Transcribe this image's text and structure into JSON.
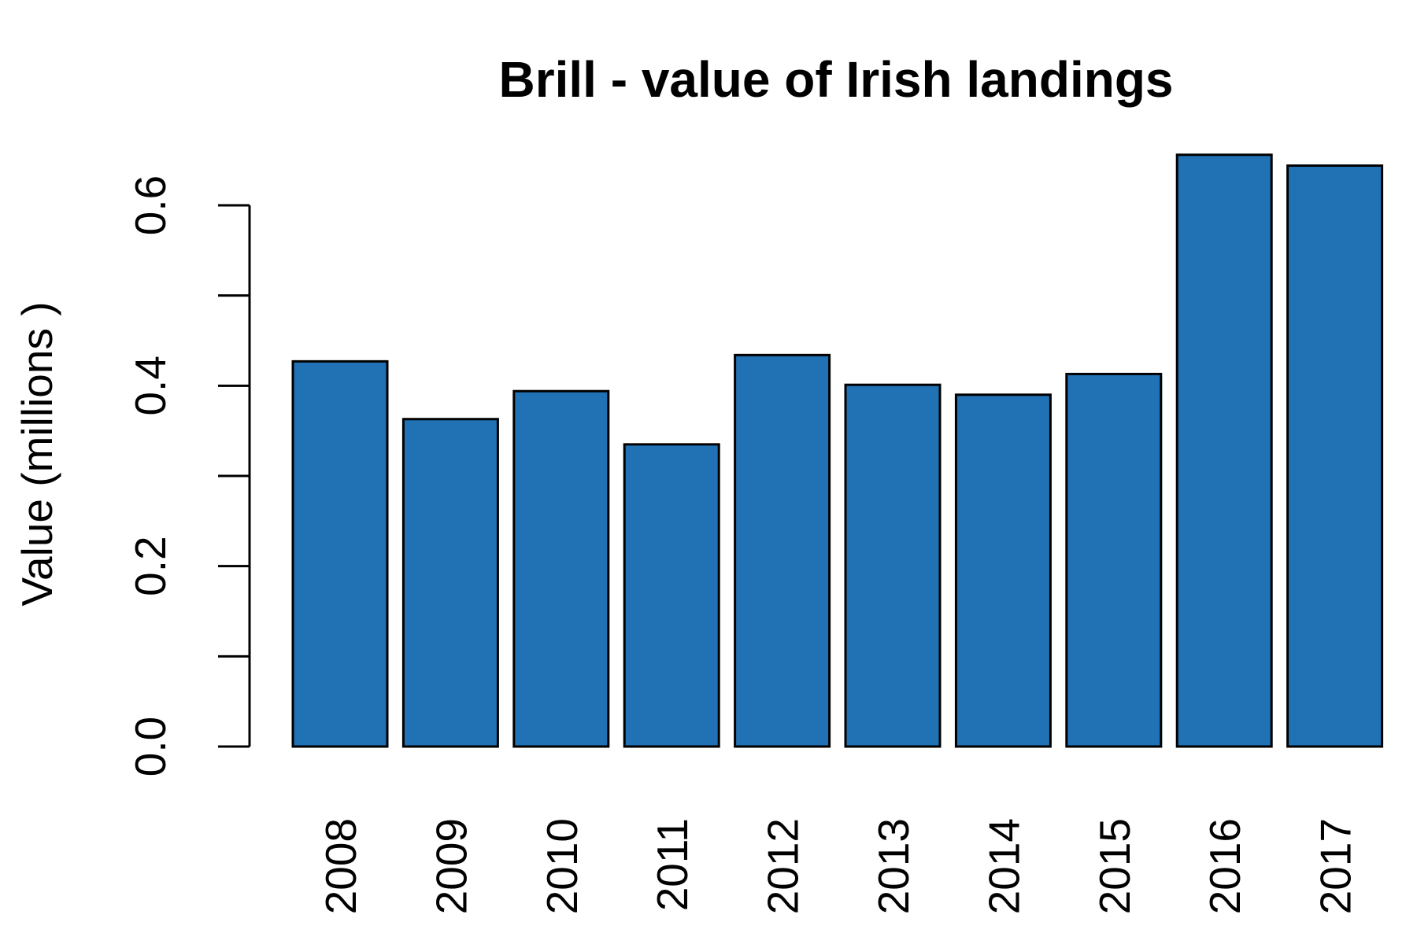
{
  "chart_data": {
    "type": "bar",
    "title": "Brill - value of Irish landings",
    "y_label": "Value (millions )",
    "categories": [
      "2008",
      "2009",
      "2010",
      "2011",
      "2012",
      "2013",
      "2014",
      "2015",
      "2016",
      "2017"
    ],
    "values": [
      0.427,
      0.363,
      0.394,
      0.335,
      0.434,
      0.401,
      0.39,
      0.413,
      0.656,
      0.644
    ],
    "color": "#2171b5",
    "ylim": [
      0,
      0.7
    ],
    "yticks": [
      {
        "value": 0,
        "label": "0.0"
      },
      {
        "value": 0.1,
        "label": null
      },
      {
        "value": 0.2,
        "label": "0.2"
      },
      {
        "value": 0.3,
        "label": null
      },
      {
        "value": 0.4,
        "label": "0.4"
      },
      {
        "value": 0.5,
        "label": null
      },
      {
        "value": 0.6,
        "label": "0.6"
      }
    ],
    "grid": false
  }
}
